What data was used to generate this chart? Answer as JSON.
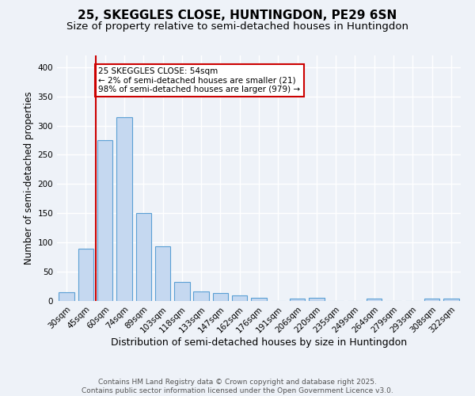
{
  "title": "25, SKEGGLES CLOSE, HUNTINGDON, PE29 6SN",
  "subtitle": "Size of property relative to semi-detached houses in Huntingdon",
  "xlabel": "Distribution of semi-detached houses by size in Huntingdon",
  "ylabel": "Number of semi-detached properties",
  "categories": [
    "30sqm",
    "45sqm",
    "60sqm",
    "74sqm",
    "89sqm",
    "103sqm",
    "118sqm",
    "133sqm",
    "147sqm",
    "162sqm",
    "176sqm",
    "191sqm",
    "206sqm",
    "220sqm",
    "235sqm",
    "249sqm",
    "264sqm",
    "279sqm",
    "293sqm",
    "308sqm",
    "322sqm"
  ],
  "values": [
    15,
    90,
    275,
    315,
    150,
    93,
    33,
    16,
    14,
    10,
    5,
    0,
    4,
    5,
    0,
    0,
    4,
    0,
    0,
    4,
    4
  ],
  "bar_color": "#c5d8f0",
  "bar_edge_color": "#5a9fd4",
  "vline_color": "#cc0000",
  "annotation_box_text": "25 SKEGGLES CLOSE: 54sqm\n← 2% of semi-detached houses are smaller (21)\n98% of semi-detached houses are larger (979) →",
  "annotation_box_color": "#ffffff",
  "annotation_box_edge_color": "#cc0000",
  "background_color": "#eef2f8",
  "grid_color": "#ffffff",
  "footer_text": "Contains HM Land Registry data © Crown copyright and database right 2025.\nContains public sector information licensed under the Open Government Licence v3.0.",
  "ylim": [
    0,
    420
  ],
  "title_fontsize": 11,
  "subtitle_fontsize": 9.5,
  "xlabel_fontsize": 9,
  "ylabel_fontsize": 8.5,
  "tick_fontsize": 7.5,
  "footer_fontsize": 6.5,
  "annot_fontsize": 7.5
}
